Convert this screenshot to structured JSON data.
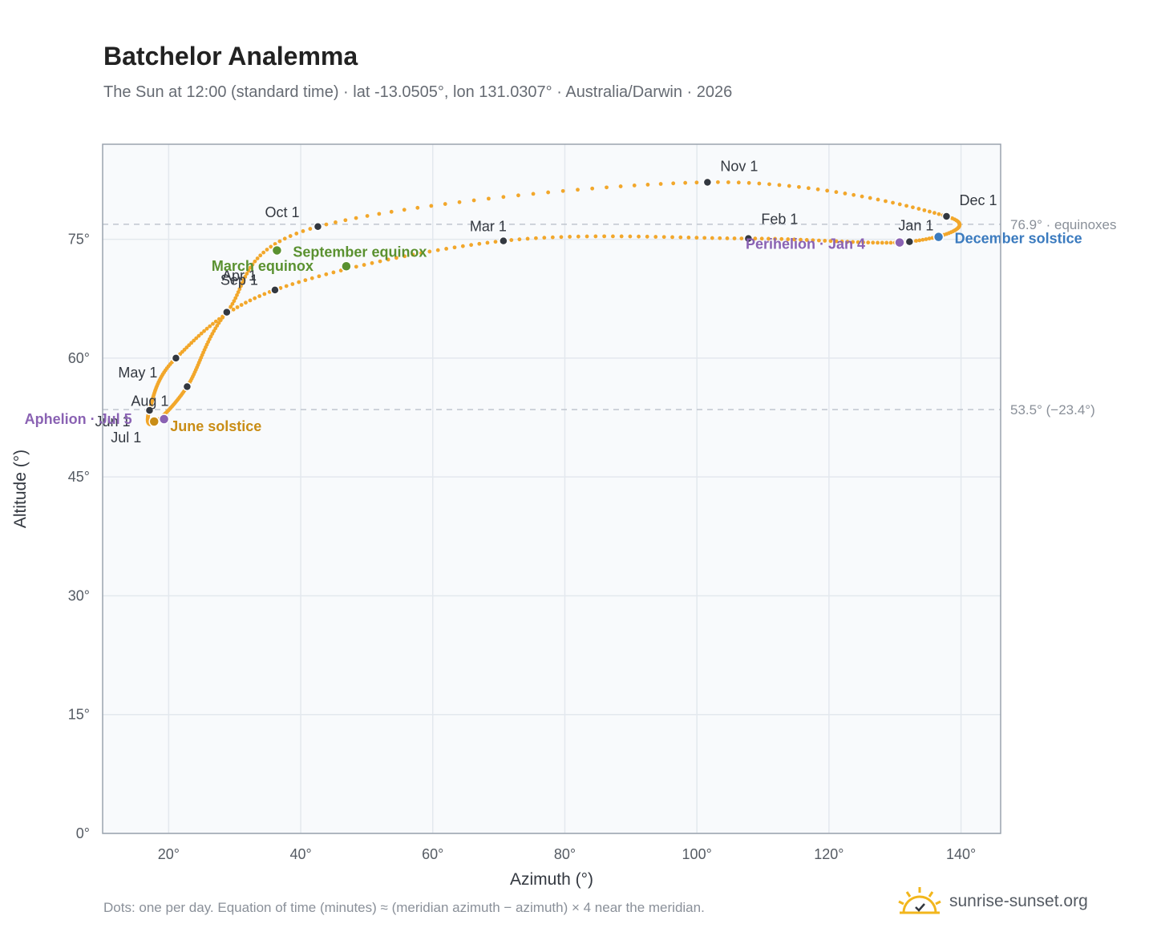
{
  "title": "Batchelor Analemma",
  "subtitle": "The Sun at 12:00 (standard time) · lat -13.0505°, lon 131.0307° · Australia/Darwin · 2026",
  "footnote": "Dots: one per day. Equation of time (minutes) ≈ (meridian azimuth − azimuth) × 4 near the meridian.",
  "brand": {
    "text": "sunrise-sunset.org",
    "icon": "sun-logo-icon"
  },
  "colors": {
    "path": "#f2a72b",
    "month_dot": "#333840",
    "equinox": "#5a9130",
    "june_solstice": "#c98d16",
    "december_solstice": "#3b7bbf",
    "apsis": "#8a62b3",
    "plot_bg": "#f8fafc",
    "grid": "#e3e8ee",
    "ref_line": "#c0c6cf"
  },
  "chart_data": {
    "type": "scatter",
    "xlabel": "Azimuth (°)",
    "ylabel": "Altitude (°)",
    "xlim": [
      10,
      146
    ],
    "ylim": [
      0,
      87
    ],
    "xticks": [
      20,
      40,
      60,
      80,
      100,
      120,
      140
    ],
    "yticks": [
      0,
      15,
      30,
      45,
      60,
      75
    ],
    "xtick_labels": [
      "20°",
      "40°",
      "60°",
      "80°",
      "100°",
      "120°",
      "140°"
    ],
    "ytick_labels": [
      "0°",
      "15°",
      "30°",
      "45°",
      "60°",
      "75°"
    ],
    "grid": true,
    "reference_lines": [
      {
        "y": 76.9,
        "label": "76.9° · equinoxes"
      },
      {
        "y": 53.5,
        "label": "53.5° (−23.4°)"
      }
    ],
    "month_markers": [
      {
        "label": "Jan 1",
        "x": 132.2,
        "y": 74.7
      },
      {
        "label": "Feb 1",
        "x": 107.8,
        "y": 75.1
      },
      {
        "label": "Mar 1",
        "x": 70.7,
        "y": 74.8
      },
      {
        "label": "Apr 1",
        "x": 36.1,
        "y": 68.6
      },
      {
        "label": "May 1",
        "x": 21.1,
        "y": 60.0
      },
      {
        "label": "Jun 1",
        "x": 17.1,
        "y": 53.4
      },
      {
        "label": "Jul 1",
        "x": 17.8,
        "y": 51.8
      },
      {
        "label": "Aug 1",
        "x": 22.8,
        "y": 56.4
      },
      {
        "label": "Sep 1",
        "x": 28.8,
        "y": 65.8
      },
      {
        "label": "Oct 1",
        "x": 42.6,
        "y": 76.6
      },
      {
        "label": "Nov 1",
        "x": 101.6,
        "y": 82.2
      },
      {
        "label": "Dec 1",
        "x": 137.8,
        "y": 77.9
      }
    ],
    "events": [
      {
        "label": "March equinox",
        "x": 46.9,
        "y": 71.6,
        "kind": "equinox"
      },
      {
        "label": "September equinox",
        "x": 36.4,
        "y": 73.6,
        "kind": "equinox"
      },
      {
        "label": "June solstice",
        "x": 17.8,
        "y": 52.0,
        "kind": "june_solstice"
      },
      {
        "label": "December solstice",
        "x": 136.6,
        "y": 75.3,
        "kind": "december_solstice"
      },
      {
        "label": "Aphelion · Jul 5",
        "x": 19.3,
        "y": 52.3,
        "kind": "apsis"
      },
      {
        "label": "Perihelion · Jan 4",
        "x": 130.7,
        "y": 74.6,
        "kind": "apsis"
      }
    ]
  }
}
